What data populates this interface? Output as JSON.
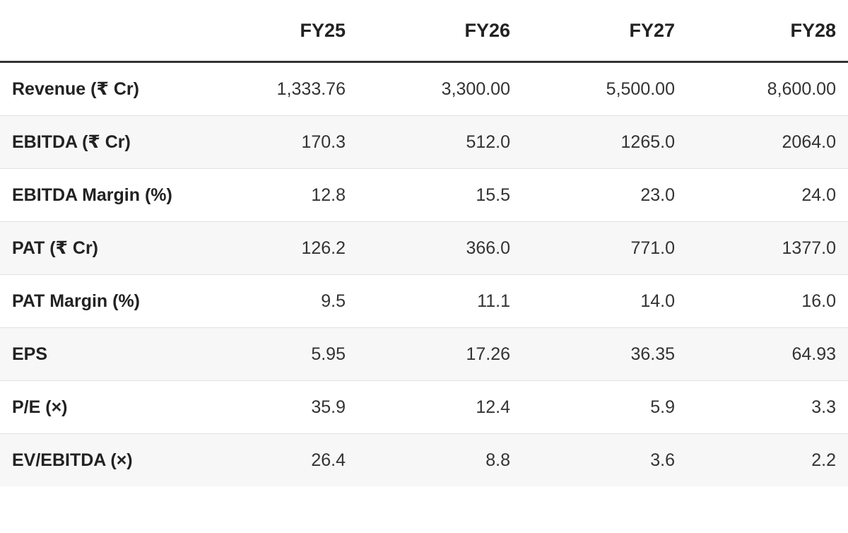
{
  "table": {
    "columns": [
      "FY25",
      "FY26",
      "FY27",
      "FY28"
    ],
    "rows": [
      [
        "Revenue (₹ Cr)",
        "1,333.76",
        "3,300.00",
        "5,500.00",
        "8,600.00"
      ],
      [
        "EBITDA (₹ Cr)",
        "170.3",
        "512.0",
        "1265.0",
        "2064.0"
      ],
      [
        "EBITDA Margin (%)",
        "12.8",
        "15.5",
        "23.0",
        "24.0"
      ],
      [
        "PAT (₹ Cr)",
        "126.2",
        "366.0",
        "771.0",
        "1377.0"
      ],
      [
        "PAT Margin (%)",
        "9.5",
        "11.1",
        "14.0",
        "16.0"
      ],
      [
        "EPS",
        "5.95",
        "17.26",
        "36.35",
        "64.93"
      ],
      [
        "P/E (×)",
        "35.9",
        "12.4",
        "5.9",
        "3.3"
      ],
      [
        "EV/EBITDA (×)",
        "26.4",
        "8.8",
        "3.6",
        "2.2"
      ]
    ]
  }
}
